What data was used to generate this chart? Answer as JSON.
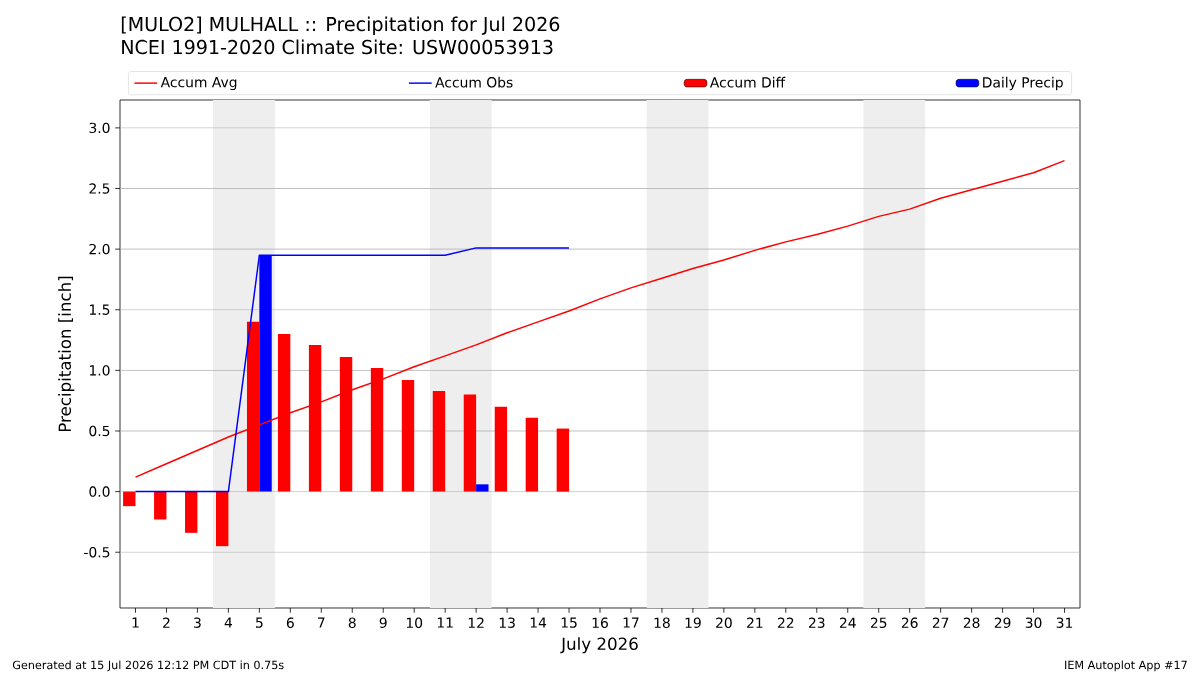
{
  "chart_data": {
    "type": "line",
    "title": "[MULO2] MULHALL :: Precipitation for Jul 2026",
    "subtitle": "NCEI 1991-2020 Climate Site: USW00053913",
    "xlabel": "July 2026",
    "ylabel": "Precipitation [inch]",
    "x": [
      1,
      2,
      3,
      4,
      5,
      6,
      7,
      8,
      9,
      10,
      11,
      12,
      13,
      14,
      15,
      16,
      17,
      18,
      19,
      20,
      21,
      22,
      23,
      24,
      25,
      26,
      27,
      28,
      29,
      30,
      31
    ],
    "series": [
      {
        "name": "Accum Avg",
        "color": "#ff0000",
        "values": [
          0.12,
          0.23,
          0.34,
          0.45,
          0.55,
          0.65,
          0.74,
          0.84,
          0.93,
          1.03,
          1.12,
          1.21,
          1.31,
          1.4,
          1.49,
          1.59,
          1.68,
          1.76,
          1.84,
          1.91,
          1.99,
          2.06,
          2.12,
          2.19,
          2.27,
          2.33,
          2.42,
          2.49,
          2.56,
          2.63,
          2.73
        ]
      },
      {
        "name": "Accum Obs",
        "color": "#0000ff",
        "values": [
          0,
          0,
          0,
          0,
          1.95,
          1.95,
          1.95,
          1.95,
          1.95,
          1.95,
          1.95,
          2.01,
          2.01,
          2.01,
          2.01,
          null,
          null,
          null,
          null,
          null,
          null,
          null,
          null,
          null,
          null,
          null,
          null,
          null,
          null,
          null,
          null
        ]
      },
      {
        "name": "Accum Diff",
        "type": "bar",
        "color": "#ff0000",
        "values": [
          -0.12,
          -0.23,
          -0.34,
          -0.45,
          1.4,
          1.3,
          1.21,
          1.11,
          1.02,
          0.92,
          0.83,
          0.8,
          0.7,
          0.61,
          0.52,
          null,
          null,
          null,
          null,
          null,
          null,
          null,
          null,
          null,
          null,
          null,
          null,
          null,
          null,
          null,
          null
        ]
      },
      {
        "name": "Daily Precip",
        "type": "bar",
        "color": "#0000ff",
        "values": [
          0,
          0,
          0,
          0,
          1.95,
          0,
          0,
          0,
          0,
          0,
          0,
          0.06,
          0,
          0,
          0,
          null,
          null,
          null,
          null,
          null,
          null,
          null,
          null,
          null,
          null,
          null,
          null,
          null,
          null,
          null,
          null
        ]
      }
    ],
    "xlim": [
      0.5,
      31.5
    ],
    "xticks": [
      1,
      2,
      3,
      4,
      5,
      6,
      7,
      8,
      9,
      10,
      11,
      12,
      13,
      14,
      15,
      16,
      17,
      18,
      19,
      20,
      21,
      22,
      23,
      24,
      25,
      26,
      27,
      28,
      29,
      30,
      31
    ],
    "ylim": [
      -0.96,
      3.23
    ],
    "yticks": [
      -0.5,
      {
        "value": 0,
        "label": "0.0"
      },
      0.5,
      {
        "value": 1,
        "label": "1.0"
      },
      1.5,
      {
        "value": 2,
        "label": "2.0"
      },
      2.5,
      {
        "value": 3,
        "label": "3.0"
      }
    ],
    "bands": [
      {
        "axis": "x",
        "from": 3.5,
        "to": 5.5,
        "color": "#eeeeee"
      },
      {
        "axis": "x",
        "from": 10.5,
        "to": 12.5,
        "color": "#eeeeee"
      },
      {
        "axis": "x",
        "from": 17.5,
        "to": 19.5,
        "color": "#eeeeee"
      },
      {
        "axis": "x",
        "from": 24.5,
        "to": 26.5,
        "color": "#eeeeee"
      }
    ],
    "grid": "y",
    "legend": "top",
    "annotations": [
      "Generated at 15 Jul 2026 12:12 PM CDT in 0.75s",
      "IEM Autoplot App #17"
    ]
  }
}
